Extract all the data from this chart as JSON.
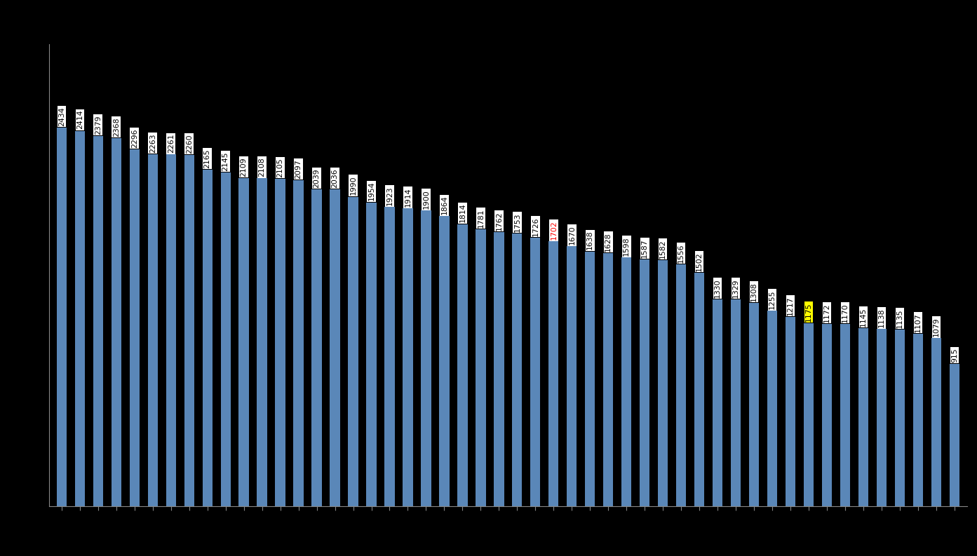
{
  "values": [
    2434,
    2414,
    2379,
    2368,
    2296,
    2263,
    2261,
    2260,
    2165,
    2145,
    2109,
    2108,
    2105,
    2097,
    2039,
    2036,
    1990,
    1954,
    1923,
    1914,
    1900,
    1864,
    1814,
    1781,
    1762,
    1753,
    1726,
    1702,
    1670,
    1638,
    1628,
    1598,
    1587,
    1582,
    1556,
    1502,
    1330,
    1329,
    1308,
    1255,
    1217,
    1175,
    1172,
    1170,
    1145,
    1138,
    1135,
    1107,
    1079,
    915
  ],
  "special_red_index": 27,
  "special_yellow_index": 41,
  "bar_color": "#5a87b8",
  "background_color": "#000000",
  "label_bg_color": "#ffffff",
  "label_text_color": "#000000",
  "label_red_text_color": "#ff0000",
  "label_yellow_bg_color": "#ffff00",
  "label_fontsize": 7.8,
  "bar_width": 0.55,
  "ylim_factor": 1.22
}
